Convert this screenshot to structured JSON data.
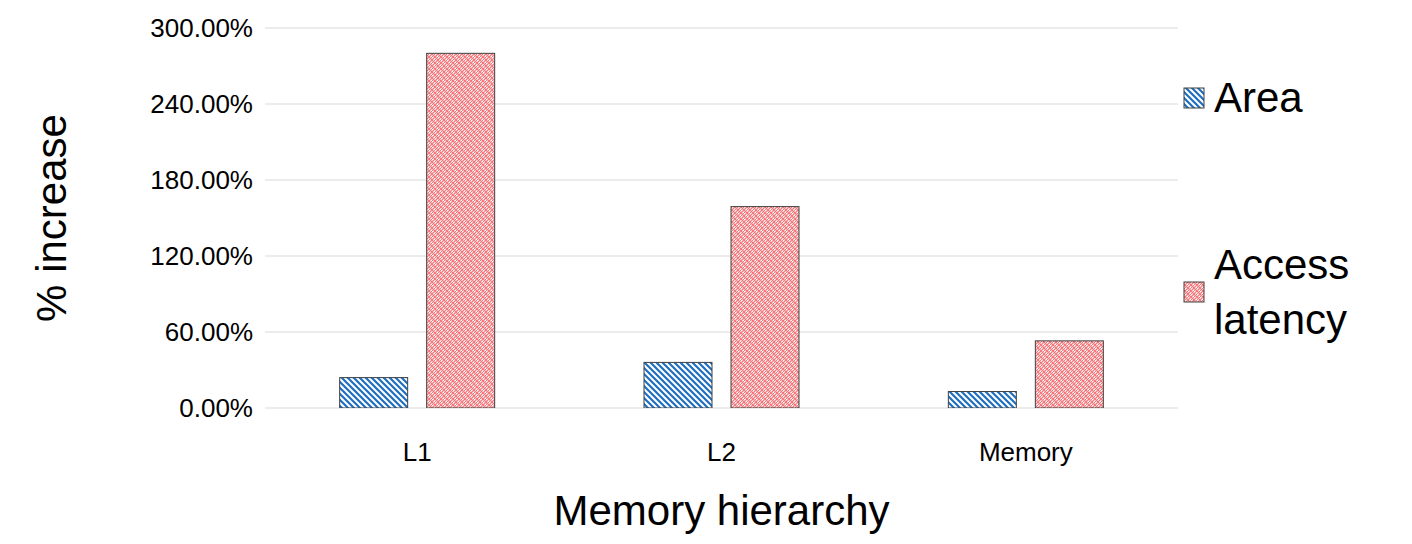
{
  "chart_data": {
    "type": "bar",
    "x_label": "Memory hierarchy",
    "y_label": "% increase",
    "categories": [
      "L1",
      "L2",
      "Memory"
    ],
    "series": [
      {
        "name": "Area",
        "color": "#1f6fc0",
        "values": [
          24,
          36,
          13
        ]
      },
      {
        "name": "Access latency",
        "color": "#f4777b",
        "values": [
          280,
          159,
          53
        ]
      }
    ],
    "ylim": [
      0,
      300
    ],
    "yticks": [
      {
        "value": 0,
        "label": "0.00%"
      },
      {
        "value": 60,
        "label": "60.00%"
      },
      {
        "value": 120,
        "label": "120.00%"
      },
      {
        "value": 180,
        "label": "180.00%"
      },
      {
        "value": 240,
        "label": "240.00%"
      },
      {
        "value": 300,
        "label": "300.00%"
      }
    ],
    "grid": true,
    "legend": "right"
  }
}
